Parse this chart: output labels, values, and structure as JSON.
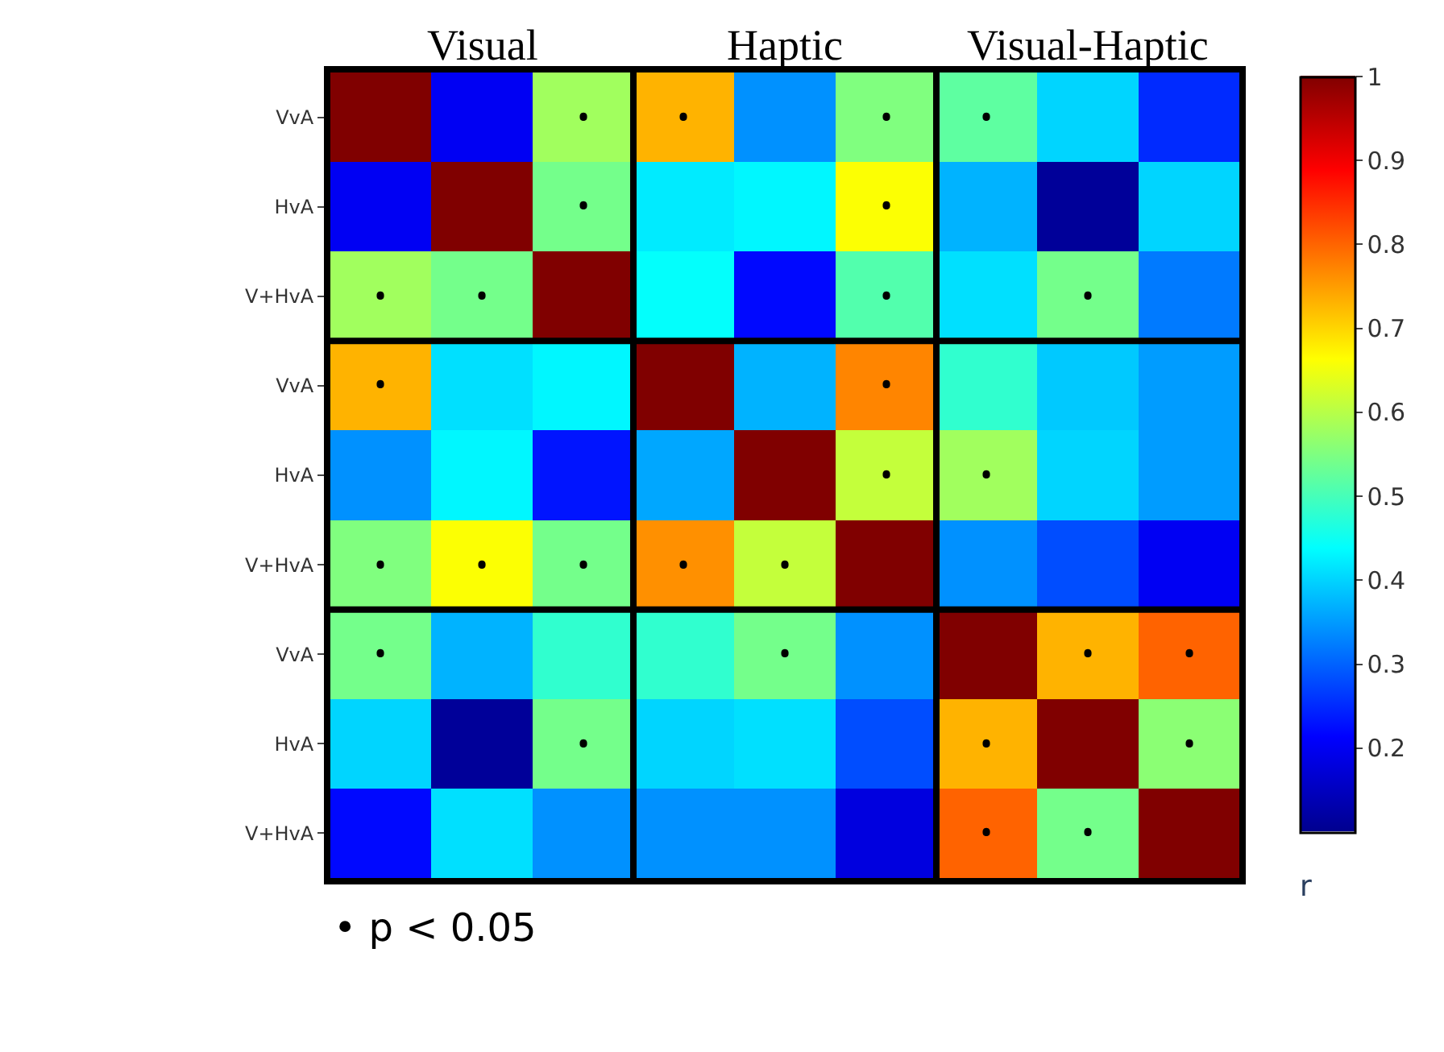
{
  "chart_data": {
    "type": "heatmap",
    "categories": [
      null,
      null,
      null,
      null,
      null,
      null,
      null,
      null,
      null
    ],
    "y_categories": [
      "VvA",
      "HvA",
      "V+HvA",
      "VvA",
      "HvA",
      "V+HvA",
      "VvA",
      "HvA",
      "V+HvA"
    ],
    "cells": [
      [
        1,
        0.2,
        0.58,
        0.73,
        0.34,
        0.55,
        0.52,
        0.4,
        0.25
      ],
      [
        0.2,
        1,
        0.54,
        0.42,
        0.43,
        0.66,
        0.37,
        0.11,
        0.4
      ],
      [
        0.58,
        0.54,
        1,
        0.44,
        0.22,
        0.51,
        0.41,
        0.54,
        0.32
      ],
      [
        0.73,
        0.41,
        0.43,
        1,
        0.37,
        0.77,
        0.48,
        0.39,
        0.35
      ],
      [
        0.34,
        0.43,
        0.23,
        0.36,
        1,
        0.61,
        0.58,
        0.4,
        0.35
      ],
      [
        0.55,
        0.66,
        0.54,
        0.76,
        0.61,
        1,
        0.34,
        0.28,
        0.2
      ],
      [
        0.54,
        0.37,
        0.48,
        0.48,
        0.54,
        0.34,
        1,
        0.73,
        0.8
      ],
      [
        0.4,
        0.11,
        0.54,
        0.4,
        0.41,
        0.28,
        0.73,
        1,
        0.56
      ],
      [
        0.22,
        0.41,
        0.34,
        0.34,
        0.34,
        0.18,
        0.8,
        0.54,
        1
      ]
    ],
    "cell_labels": [
      [
        null,
        null,
        "•",
        "•",
        null,
        "•",
        "•",
        null,
        null
      ],
      [
        null,
        null,
        "•",
        null,
        null,
        "•",
        null,
        null,
        null
      ],
      [
        "•",
        "•",
        null,
        null,
        null,
        "•",
        null,
        "•",
        null
      ],
      [
        "•",
        null,
        null,
        null,
        null,
        "•",
        null,
        null,
        null
      ],
      [
        null,
        null,
        null,
        null,
        null,
        "•",
        "•",
        null,
        null
      ],
      [
        "•",
        "•",
        "•",
        "•",
        "•",
        null,
        null,
        null,
        null
      ],
      [
        "•",
        null,
        null,
        null,
        "•",
        null,
        null,
        "•",
        "•"
      ],
      [
        null,
        null,
        "•",
        null,
        null,
        null,
        "•",
        null,
        "•"
      ],
      [
        null,
        null,
        null,
        null,
        null,
        null,
        "•",
        "•",
        null
      ]
    ],
    "clim": [
      0.1,
      1
    ],
    "cticks": [
      0.2,
      0.3,
      0.4,
      0.5,
      0.6,
      0.7,
      0.8,
      0.9,
      1
    ],
    "clabel": "r",
    "annotations": [
      "Visual",
      "Haptic",
      "Visual-Haptic",
      "• p < 0.05"
    ]
  }
}
